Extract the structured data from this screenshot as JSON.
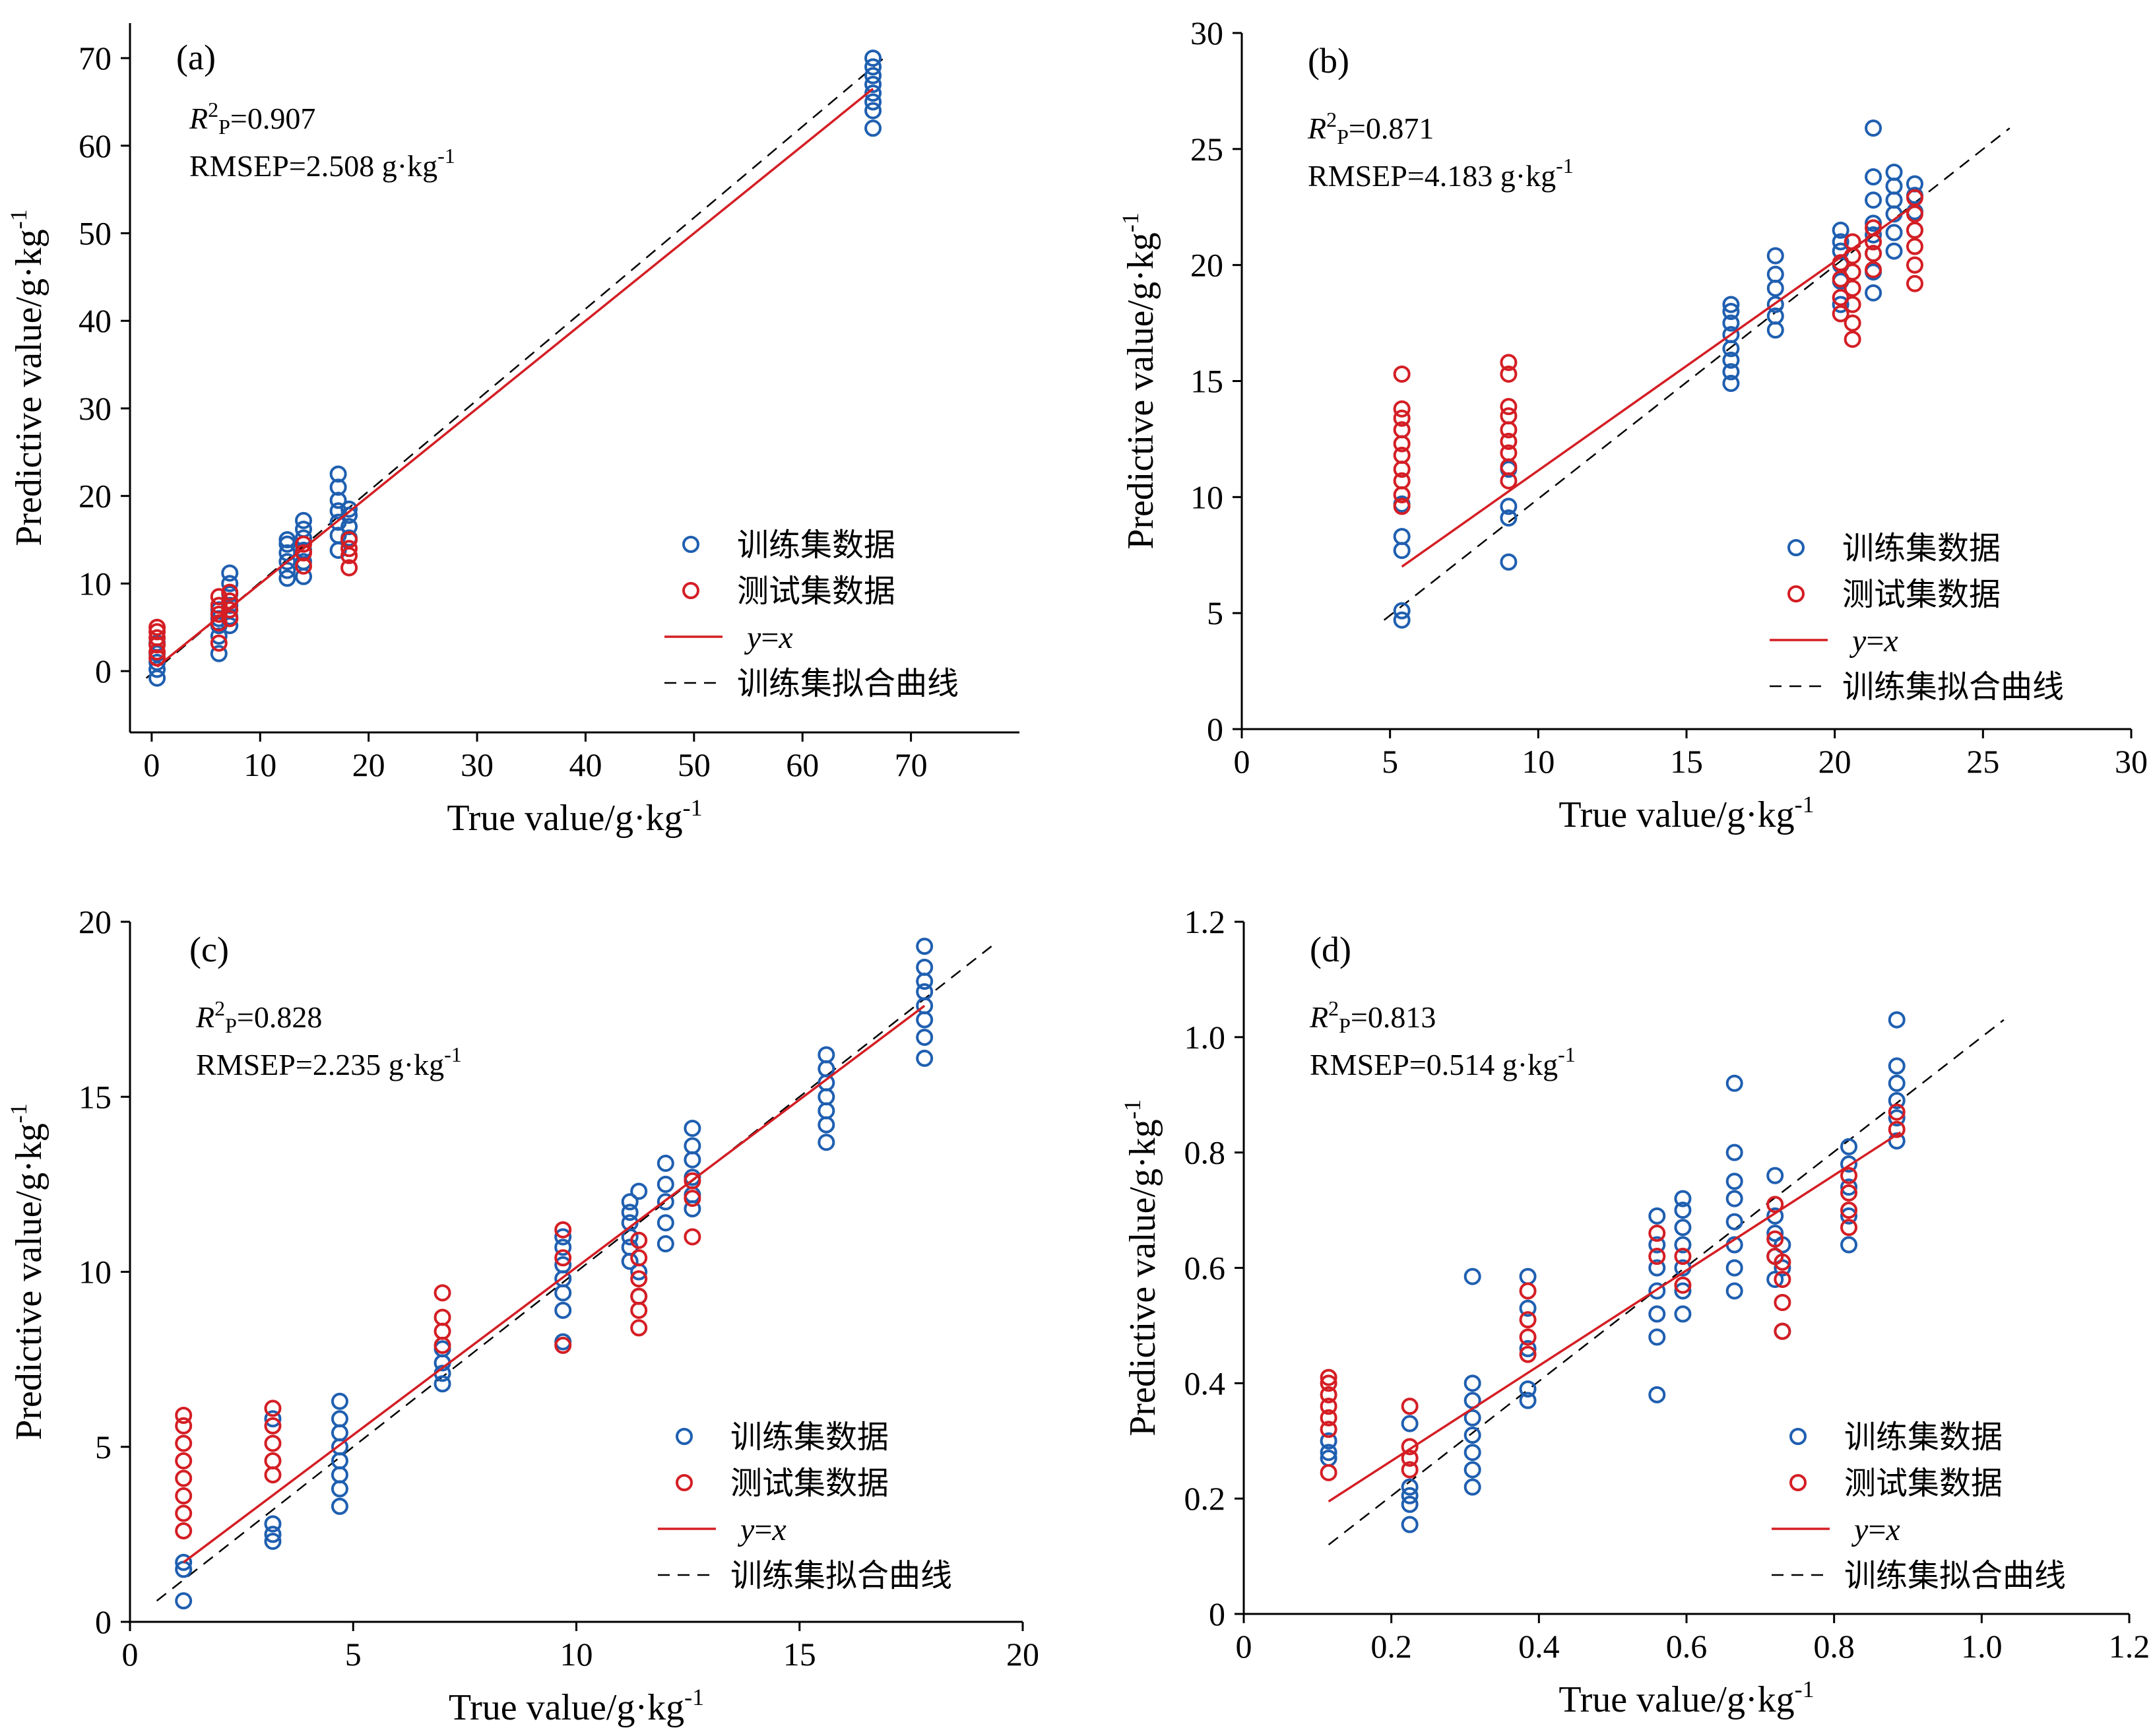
{
  "colors": {
    "train": "#1f5fb0",
    "test": "#d41e24",
    "fit": "#000000",
    "yx": "#d41e24"
  },
  "legend": {
    "train": "训练集数据",
    "test": "测试集数据",
    "yx_prefix": "y",
    "yx_sep": "=",
    "yx_suffix": "x",
    "fit": "训练集拟合曲线"
  },
  "chart_data": [
    {
      "type": "scatter",
      "panel": "(a)",
      "xlabel": "True value/g·kg",
      "xlabel_sup": "-1",
      "ylabel": "Predictive value/g·kg",
      "ylabel_sup": "-1",
      "xlim": [
        -2,
        80
      ],
      "ylim": [
        -7,
        74
      ],
      "xticks": [
        0,
        10,
        20,
        30,
        40,
        50,
        60,
        70
      ],
      "yticks": [
        0,
        10,
        20,
        30,
        40,
        50,
        60,
        70
      ],
      "r2": "0.907",
      "rmsep": "RMSEP=2.508 g·kg",
      "rmsep_sup": "-1",
      "yx_line": [
        [
          0.5,
          0.5
        ],
        [
          66.5,
          66.5
        ]
      ],
      "fit_line": [
        [
          -0.5,
          -0.8
        ],
        [
          67.5,
          70
        ]
      ],
      "train_groups": [
        {
          "x": 0.5,
          "y": [
            -0.8,
            0.2,
            1.0,
            2.0,
            3.2
          ]
        },
        {
          "x": 6.2,
          "y": [
            2.0,
            4.0,
            5.2,
            6.0,
            7.0
          ]
        },
        {
          "x": 7.2,
          "y": [
            5.2,
            6.2,
            7.5,
            8.8,
            10.0,
            11.2
          ]
        },
        {
          "x": 12.5,
          "y": [
            10.6,
            11.5,
            12.5,
            13.5,
            14.5,
            15.0
          ]
        },
        {
          "x": 14.0,
          "y": [
            10.8,
            12.5,
            13.8,
            15.2,
            16.2,
            17.2
          ]
        },
        {
          "x": 17.2,
          "y": [
            13.8,
            15.5,
            17.0,
            18.3,
            19.5,
            21.0,
            22.5
          ]
        },
        {
          "x": 18.2,
          "y": [
            15.2,
            16.5,
            17.8,
            18.5
          ]
        },
        {
          "x": 66.5,
          "y": [
            62.0,
            64.0,
            65.0,
            66.0,
            67.0,
            68.0,
            69.0,
            70.0
          ]
        }
      ],
      "test_groups": [
        {
          "x": 0.5,
          "y": [
            1.5,
            2.2,
            3.0,
            3.8,
            4.5,
            5.0
          ]
        },
        {
          "x": 6.2,
          "y": [
            3.2,
            5.5,
            6.5,
            7.5,
            8.5
          ]
        },
        {
          "x": 7.2,
          "y": [
            6.0,
            7.0,
            8.0,
            9.0
          ]
        },
        {
          "x": 14.0,
          "y": [
            12.0,
            13.5,
            14.5
          ]
        },
        {
          "x": 18.2,
          "y": [
            11.8,
            13.2,
            14.0,
            15.0
          ]
        }
      ]
    },
    {
      "type": "scatter",
      "panel": "(b)",
      "xlabel": "True value/g·kg",
      "xlabel_sup": "-1",
      "ylabel": "Predictive value/g·kg",
      "ylabel_sup": "-1",
      "xlim": [
        0,
        30
      ],
      "ylim": [
        0,
        30
      ],
      "xticks": [
        0,
        5,
        10,
        15,
        20,
        25,
        30
      ],
      "yticks": [
        0,
        5,
        10,
        15,
        20,
        25,
        30
      ],
      "r2": "0.871",
      "rmsep": "RMSEP=4.183 g·kg",
      "rmsep_sup": "-1",
      "yx_line": [
        [
          5.4,
          7.0
        ],
        [
          22.6,
          22.5
        ]
      ],
      "fit_line": [
        [
          4.8,
          4.7
        ],
        [
          25.9,
          25.9
        ]
      ],
      "train_groups": [
        {
          "x": 5.4,
          "y": [
            4.7,
            5.1,
            7.7,
            8.3,
            9.7
          ]
        },
        {
          "x": 9.0,
          "y": [
            7.2,
            9.1,
            9.6,
            11.2
          ]
        },
        {
          "x": 16.5,
          "y": [
            14.9,
            15.4,
            15.9,
            16.4,
            17.0,
            17.5,
            18.0,
            18.3
          ]
        },
        {
          "x": 18.0,
          "y": [
            17.2,
            17.8,
            18.3,
            19.0,
            19.6,
            20.4
          ]
        },
        {
          "x": 20.2,
          "y": [
            18.3,
            19.3,
            20.0,
            20.6,
            21.0,
            21.5
          ]
        },
        {
          "x": 21.3,
          "y": [
            18.8,
            19.7,
            20.5,
            21.3,
            21.8,
            22.8,
            23.8,
            25.9
          ]
        },
        {
          "x": 22.0,
          "y": [
            20.6,
            21.4,
            22.2,
            22.8,
            23.4,
            24.0
          ]
        },
        {
          "x": 22.7,
          "y": [
            21.5,
            22.3,
            23.0,
            23.5
          ]
        }
      ],
      "test_groups": [
        {
          "x": 5.4,
          "y": [
            9.6,
            10.1,
            10.7,
            11.2,
            11.8,
            12.3,
            12.9,
            13.4,
            13.8,
            15.3
          ]
        },
        {
          "x": 9.0,
          "y": [
            10.7,
            11.3,
            11.9,
            12.4,
            12.9,
            13.5,
            13.9,
            15.3,
            15.8
          ]
        },
        {
          "x": 20.2,
          "y": [
            17.9,
            18.6,
            19.4,
            20.1
          ]
        },
        {
          "x": 20.6,
          "y": [
            16.8,
            17.5,
            18.3,
            19.0,
            19.7,
            20.4,
            21.0
          ]
        },
        {
          "x": 21.3,
          "y": [
            19.8,
            20.5,
            21.0,
            21.6
          ]
        },
        {
          "x": 22.7,
          "y": [
            19.2,
            20.0,
            20.8,
            21.5,
            22.2,
            22.9
          ]
        }
      ]
    },
    {
      "type": "scatter",
      "panel": "(c)",
      "xlabel": "True value/g·kg",
      "xlabel_sup": "-1",
      "ylabel": "Predictive value/g·kg",
      "ylabel_sup": "-1",
      "xlim": [
        0,
        20
      ],
      "ylim": [
        0,
        20
      ],
      "xticks": [
        0,
        5,
        10,
        15,
        20
      ],
      "yticks": [
        0,
        5,
        10,
        15,
        20
      ],
      "r2": "0.828",
      "rmsep": "RMSEP=2.235 g·kg",
      "rmsep_sup": "-1",
      "yx_line": [
        [
          1.2,
          1.7
        ],
        [
          17.8,
          17.6
        ]
      ],
      "fit_line": [
        [
          0.6,
          0.6
        ],
        [
          19.3,
          19.3
        ]
      ],
      "train_groups": [
        {
          "x": 1.2,
          "y": [
            0.6,
            1.5,
            1.7
          ]
        },
        {
          "x": 3.2,
          "y": [
            2.3,
            2.5,
            2.8,
            5.8
          ]
        },
        {
          "x": 4.7,
          "y": [
            3.3,
            3.8,
            4.2,
            4.6,
            5.0,
            5.4,
            5.8,
            6.3
          ]
        },
        {
          "x": 7.0,
          "y": [
            6.8,
            7.1,
            7.4,
            7.8
          ]
        },
        {
          "x": 9.7,
          "y": [
            8.0,
            8.9,
            9.4,
            9.8,
            10.2,
            10.7,
            11.0
          ]
        },
        {
          "x": 11.2,
          "y": [
            10.3,
            10.7,
            11.0,
            11.4,
            11.7,
            12.0
          ]
        },
        {
          "x": 11.4,
          "y": [
            9.3,
            10.0,
            12.3
          ]
        },
        {
          "x": 12.0,
          "y": [
            10.8,
            11.4,
            12.0,
            12.5,
            13.1
          ]
        },
        {
          "x": 12.6,
          "y": [
            11.8,
            12.2,
            12.7,
            13.2,
            13.6,
            14.1
          ]
        },
        {
          "x": 15.6,
          "y": [
            13.7,
            14.2,
            14.6,
            15.0,
            15.4,
            15.8,
            16.2
          ]
        },
        {
          "x": 17.8,
          "y": [
            16.1,
            16.7,
            17.2,
            17.6,
            18.0,
            18.3,
            18.7,
            19.3
          ]
        }
      ],
      "test_groups": [
        {
          "x": 1.2,
          "y": [
            2.6,
            3.1,
            3.6,
            4.1,
            4.6,
            5.1,
            5.6,
            5.9
          ]
        },
        {
          "x": 3.2,
          "y": [
            4.2,
            4.6,
            5.1,
            5.6,
            6.1
          ]
        },
        {
          "x": 7.0,
          "y": [
            7.9,
            8.3,
            8.7,
            9.4
          ]
        },
        {
          "x": 9.7,
          "y": [
            7.9,
            10.4,
            11.2
          ]
        },
        {
          "x": 11.4,
          "y": [
            8.4,
            8.9,
            9.3,
            9.8,
            10.4,
            10.9
          ]
        },
        {
          "x": 12.6,
          "y": [
            11.0,
            12.1,
            12.6
          ]
        }
      ]
    },
    {
      "type": "scatter",
      "panel": "(d)",
      "xlabel": "True value/g·kg",
      "xlabel_sup": "-1",
      "ylabel": "Predictive value/g·kg",
      "ylabel_sup": "-1",
      "xlim": [
        0,
        1.2
      ],
      "ylim": [
        0,
        1.2
      ],
      "xticks": [
        "0",
        "0.2",
        "0.4",
        "0.6",
        "0.8",
        "1.0",
        "1.2"
      ],
      "yticks": [
        "0",
        "0.2",
        "0.4",
        "0.6",
        "0.8",
        "1.0",
        "1.2"
      ],
      "r2": "0.813",
      "rmsep": "RMSEP=0.514 g·kg",
      "rmsep_sup": "-1",
      "yx_line": [
        [
          0.115,
          0.195
        ],
        [
          0.89,
          0.835
        ]
      ],
      "fit_line": [
        [
          0.115,
          0.12
        ],
        [
          1.03,
          1.03
        ]
      ],
      "train_groups": [
        {
          "x": 0.115,
          "y": [
            0.27,
            0.28,
            0.3
          ]
        },
        {
          "x": 0.225,
          "y": [
            0.155,
            0.19,
            0.205,
            0.22,
            0.33
          ]
        },
        {
          "x": 0.31,
          "y": [
            0.22,
            0.25,
            0.28,
            0.31,
            0.34,
            0.37,
            0.4,
            0.585
          ]
        },
        {
          "x": 0.385,
          "y": [
            0.37,
            0.39,
            0.46,
            0.53,
            0.585
          ]
        },
        {
          "x": 0.56,
          "y": [
            0.38,
            0.48,
            0.52,
            0.56,
            0.6,
            0.64,
            0.69
          ]
        },
        {
          "x": 0.595,
          "y": [
            0.52,
            0.56,
            0.6,
            0.64,
            0.67,
            0.7,
            0.72
          ]
        },
        {
          "x": 0.665,
          "y": [
            0.56,
            0.6,
            0.64,
            0.68,
            0.72,
            0.75,
            0.8,
            0.92
          ]
        },
        {
          "x": 0.72,
          "y": [
            0.58,
            0.62,
            0.66,
            0.69,
            0.76
          ]
        },
        {
          "x": 0.73,
          "y": [
            0.49,
            0.6,
            0.64
          ]
        },
        {
          "x": 0.82,
          "y": [
            0.64,
            0.69,
            0.74,
            0.78,
            0.81
          ]
        },
        {
          "x": 0.885,
          "y": [
            0.82,
            0.86,
            0.89,
            0.92,
            0.95,
            1.03
          ]
        }
      ],
      "test_groups": [
        {
          "x": 0.115,
          "y": [
            0.245,
            0.32,
            0.34,
            0.36,
            0.38,
            0.4,
            0.41
          ]
        },
        {
          "x": 0.225,
          "y": [
            0.25,
            0.27,
            0.29,
            0.36
          ]
        },
        {
          "x": 0.385,
          "y": [
            0.45,
            0.48,
            0.51,
            0.56
          ]
        },
        {
          "x": 0.56,
          "y": [
            0.62,
            0.66
          ]
        },
        {
          "x": 0.595,
          "y": [
            0.57,
            0.62
          ]
        },
        {
          "x": 0.72,
          "y": [
            0.62,
            0.65,
            0.71
          ]
        },
        {
          "x": 0.73,
          "y": [
            0.49,
            0.54,
            0.58,
            0.61
          ]
        },
        {
          "x": 0.82,
          "y": [
            0.67,
            0.7,
            0.73,
            0.76
          ]
        },
        {
          "x": 0.885,
          "y": [
            0.84,
            0.87
          ]
        }
      ]
    }
  ]
}
